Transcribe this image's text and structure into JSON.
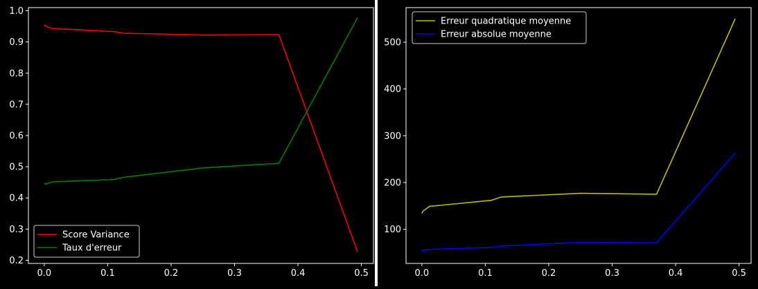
{
  "chart_data": [
    {
      "type": "line",
      "x": [
        0.0,
        0.002,
        0.012,
        0.11,
        0.125,
        0.25,
        0.37,
        0.494
      ],
      "xlim": [
        -0.025,
        0.519
      ],
      "ylim": [
        0.19,
        1.01
      ],
      "xticks": [
        0.0,
        0.1,
        0.2,
        0.3,
        0.4,
        0.5
      ],
      "xtick_labels": [
        "0.0",
        "0.1",
        "0.2",
        "0.3",
        "0.4",
        "0.5"
      ],
      "yticks": [
        0.2,
        0.3,
        0.4,
        0.5,
        0.6,
        0.7,
        0.8,
        0.9,
        1.0
      ],
      "ytick_labels": [
        "0.2",
        "0.3",
        "0.4",
        "0.5",
        "0.6",
        "0.7",
        "0.8",
        "0.9",
        "1.0"
      ],
      "title": "",
      "xlabel": "",
      "ylabel": "",
      "grid": false,
      "legend_position": "lower-left",
      "series": [
        {
          "name": "Score Variance",
          "color": "#ff0000",
          "values": [
            0.955,
            0.951,
            0.943,
            0.933,
            0.928,
            0.922,
            0.923,
            0.227
          ]
        },
        {
          "name": "Taux d'erreur",
          "color": "#008000",
          "values": [
            0.447,
            0.444,
            0.451,
            0.459,
            0.466,
            0.496,
            0.511,
            0.978
          ]
        }
      ]
    },
    {
      "type": "line",
      "x": [
        0.0,
        0.002,
        0.012,
        0.11,
        0.125,
        0.25,
        0.37,
        0.494
      ],
      "xlim": [
        -0.025,
        0.519
      ],
      "ylim": [
        27,
        574
      ],
      "xticks": [
        0.0,
        0.1,
        0.2,
        0.3,
        0.4,
        0.5
      ],
      "xtick_labels": [
        "0.0",
        "0.1",
        "0.2",
        "0.3",
        "0.4",
        "0.5"
      ],
      "yticks": [
        100,
        200,
        300,
        400,
        500
      ],
      "ytick_labels": [
        "100",
        "200",
        "300",
        "400",
        "500"
      ],
      "title": "",
      "xlabel": "",
      "ylabel": "",
      "grid": false,
      "legend_position": "top-left",
      "series": [
        {
          "name": "Erreur quadratique moyenne",
          "color": "#bfbf00",
          "values": [
            134,
            139,
            149,
            162,
            169,
            177,
            175,
            550
          ]
        },
        {
          "name": "Erreur absolue moyenne",
          "color": "#0000ff",
          "values": [
            54,
            55,
            57,
            61,
            64,
            72,
            71,
            263
          ]
        }
      ]
    }
  ]
}
